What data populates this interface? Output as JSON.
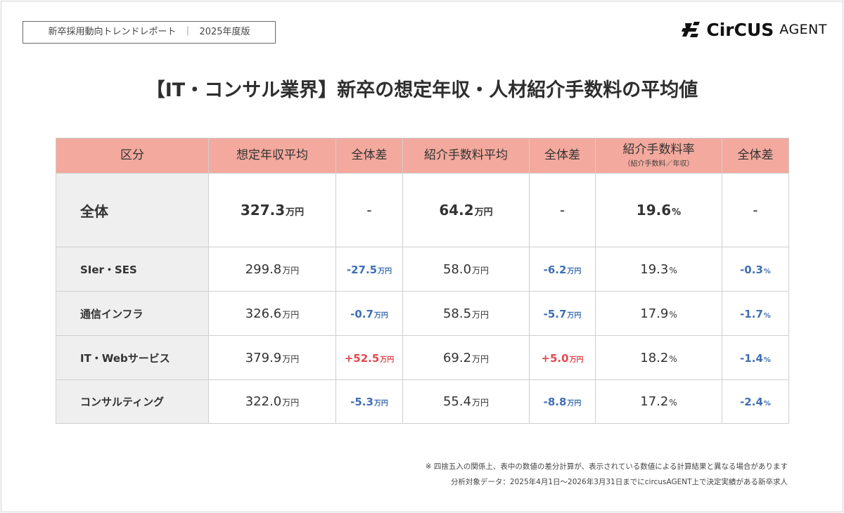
{
  "header": {
    "report_title": "新卒採用動向トレンドレポート",
    "separator": "｜",
    "report_edition": "2025年度版",
    "logo_mark": "circus-logo-icon",
    "logo_brand": "CirCUS",
    "logo_agent": "AGENT"
  },
  "main": {
    "title": "【IT・コンサル業界】新卒の想定年収・人材紹介手数料の平均値"
  },
  "table": {
    "headers": [
      {
        "label": "区分",
        "sub": ""
      },
      {
        "label": "想定年収平均",
        "sub": ""
      },
      {
        "label": "全体差",
        "sub": ""
      },
      {
        "label": "紹介手数料平均",
        "sub": ""
      },
      {
        "label": "全体差",
        "sub": ""
      },
      {
        "label": "紹介手数料率",
        "sub": "（紹介手数料／年収）"
      },
      {
        "label": "全体差",
        "sub": ""
      }
    ],
    "rows": [
      {
        "category": "全体",
        "salary": "327.3",
        "salary_unit": "万円",
        "salary_diff": "-",
        "salary_diff_unit": "",
        "fee": "64.2",
        "fee_unit": "万円",
        "fee_diff": "-",
        "fee_diff_unit": "",
        "rate": "19.6",
        "rate_unit": "%",
        "rate_diff": "-",
        "rate_diff_unit": ""
      },
      {
        "category": "SIer・SES",
        "salary": "299.8",
        "salary_unit": "万円",
        "salary_diff": "-27.5",
        "salary_diff_unit": "万円",
        "fee": "58.0",
        "fee_unit": "万円",
        "fee_diff": "-6.2",
        "fee_diff_unit": "万円",
        "rate": "19.3",
        "rate_unit": "%",
        "rate_diff": "-0.3",
        "rate_diff_unit": "%"
      },
      {
        "category": "通信インフラ",
        "salary": "326.6",
        "salary_unit": "万円",
        "salary_diff": "-0.7",
        "salary_diff_unit": "万円",
        "fee": "58.5",
        "fee_unit": "万円",
        "fee_diff": "-5.7",
        "fee_diff_unit": "万円",
        "rate": "17.9",
        "rate_unit": "%",
        "rate_diff": "-1.7",
        "rate_diff_unit": "%"
      },
      {
        "category": "IT・Webサービス",
        "salary": "379.9",
        "salary_unit": "万円",
        "salary_diff": "+52.5",
        "salary_diff_unit": "万円",
        "fee": "69.2",
        "fee_unit": "万円",
        "fee_diff": "+5.0",
        "fee_diff_unit": "万円",
        "rate": "18.2",
        "rate_unit": "%",
        "rate_diff": "-1.4",
        "rate_diff_unit": "%"
      },
      {
        "category": "コンサルティング",
        "salary": "322.0",
        "salary_unit": "万円",
        "salary_diff": "-5.3",
        "salary_diff_unit": "万円",
        "fee": "55.4",
        "fee_unit": "万円",
        "fee_diff": "-8.8",
        "fee_diff_unit": "万円",
        "rate": "17.2",
        "rate_unit": "%",
        "rate_diff": "-2.4",
        "rate_diff_unit": "%"
      }
    ]
  },
  "notes": {
    "note1": "※ 四捨五入の関係上、表中の数値の差分計算が、表示されている数値による計算結果と異なる場合があります",
    "note2": "分析対象データ：2025年4月1日〜2026年3月31日までにcircusAGENT上で決定実績がある新卒求人"
  },
  "colors": {
    "header_bg": "#f3a99d",
    "category_bg": "#efefef",
    "negative": "#3f6fb3",
    "positive": "#e0484e"
  }
}
